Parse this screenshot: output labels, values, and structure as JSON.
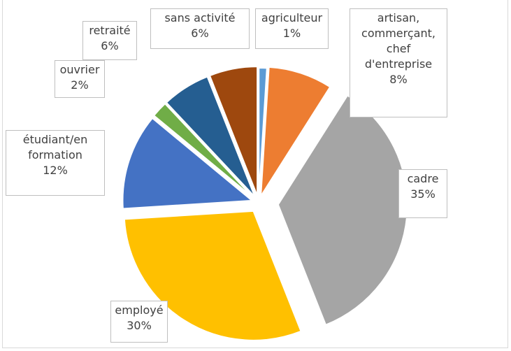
{
  "chart_data": {
    "type": "pie",
    "categories": [
      "agriculteur",
      "artisan, commerçant, chef d'entreprise",
      "cadre",
      "employé",
      "étudiant/en formation",
      "ouvrier",
      "retraité",
      "sans activité"
    ],
    "values": [
      1,
      8,
      35,
      30,
      12,
      2,
      6,
      6
    ],
    "value_labels": [
      "1%",
      "8%",
      "35%",
      "30%",
      "12%",
      "2%",
      "6%",
      "6%"
    ],
    "colors": [
      "#5b9bd5",
      "#ed7d31",
      "#a5a5a5",
      "#ffc000",
      "#4472c4",
      "#70ad47",
      "#255e91",
      "#9e480e"
    ]
  }
}
